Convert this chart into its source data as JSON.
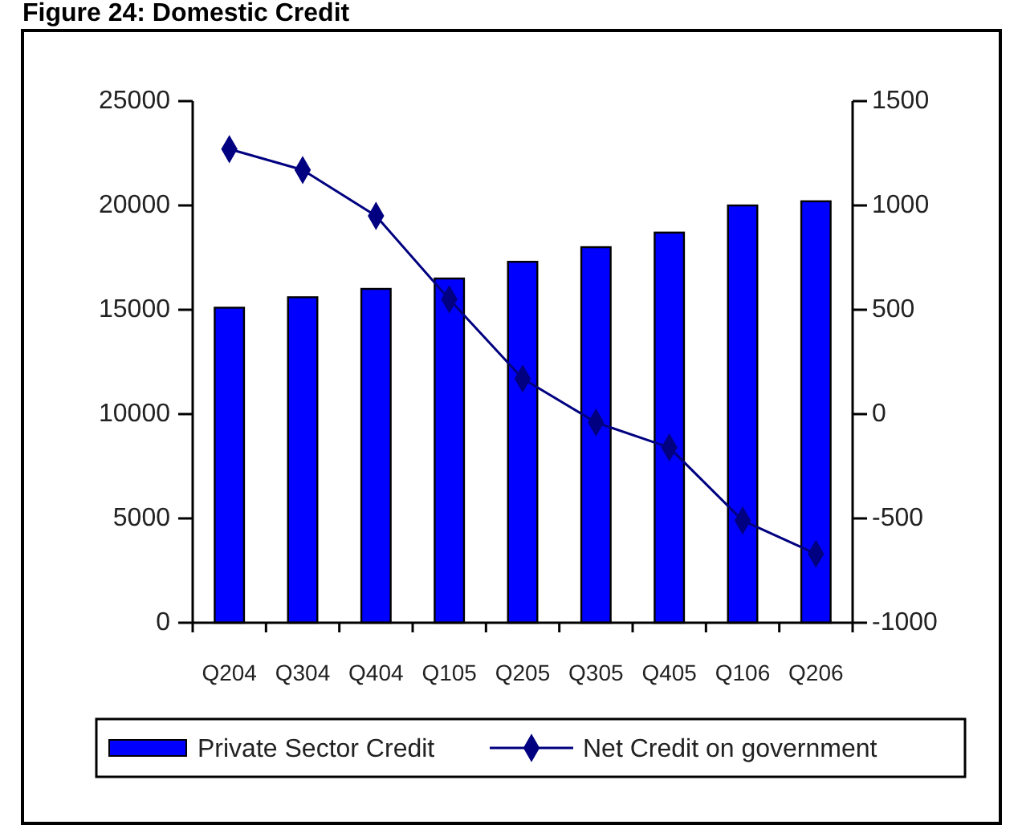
{
  "chart_data": {
    "type": "bar",
    "title": "Figure 24: Domestic Credit",
    "categories": [
      "Q204",
      "Q304",
      "Q404",
      "Q105",
      "Q205",
      "Q305",
      "Q405",
      "Q106",
      "Q206"
    ],
    "series": [
      {
        "name": "Private Sector Credit",
        "color": "#0000ff",
        "values": [
          15100,
          15600,
          16000,
          16500,
          17300,
          18000,
          18700,
          20000,
          20200
        ]
      },
      {
        "name": "Net Credit on government",
        "type": "line",
        "axis": "y2",
        "color": "#000080",
        "marker": "diamond",
        "values": [
          1270,
          1170,
          950,
          550,
          170,
          -40,
          -160,
          -510,
          -670
        ]
      }
    ],
    "ylim": [
      0,
      25000
    ],
    "yticks": [
      0,
      5000,
      10000,
      15000,
      20000,
      25000
    ],
    "y2lim": [
      -1000,
      1500
    ],
    "y2ticks": [
      -1000,
      -500,
      0,
      500,
      1000,
      1500
    ],
    "legend": "bottom",
    "grid": false
  }
}
